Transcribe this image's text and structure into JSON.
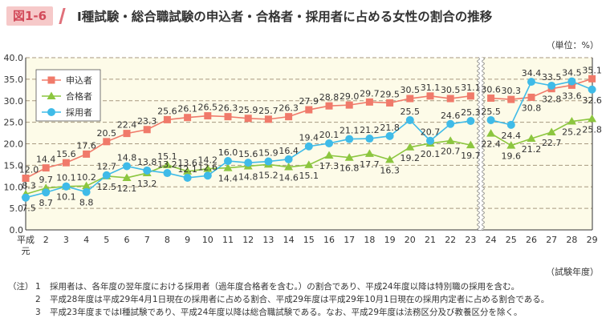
{
  "figure_label": "図1-6",
  "unit": "（単位：%）",
  "chart_data": {
    "type": "line",
    "title": "Ⅰ種試験・総合職試験の申込者・合格者・採用者に占める女性の割合の推移",
    "xlabel": "（試験年度）",
    "categories": [
      "平成元",
      "2",
      "3",
      "4",
      "5",
      "6",
      "7",
      "8",
      "9",
      "10",
      "11",
      "12",
      "13",
      "14",
      "15",
      "16",
      "17",
      "18",
      "19",
      "20",
      "21",
      "22",
      "23",
      "24",
      "25",
      "26",
      "27",
      "28",
      "29"
    ],
    "axis_break_between": [
      "23",
      "24"
    ],
    "ylim": [
      0,
      40
    ],
    "yticks": [
      "0.0",
      "5.0",
      "10.0",
      "15.0",
      "20.0",
      "25.0",
      "30.0",
      "35.0",
      "40.0"
    ],
    "grid": "horizontal dashed",
    "legend": "top-left",
    "series": [
      {
        "name": "申込者",
        "color": "#f07a6a",
        "marker": "square",
        "values": [
          12.0,
          14.4,
          15.6,
          17.6,
          20.5,
          22.4,
          23.3,
          25.6,
          26.1,
          26.5,
          26.3,
          25.9,
          25.7,
          26.3,
          27.9,
          28.8,
          29.0,
          29.7,
          29.5,
          30.5,
          31.1,
          30.5,
          31.1,
          30.6,
          30.3,
          30.8,
          32.8,
          33.6,
          35.1
        ]
      },
      {
        "name": "合格者",
        "color": "#8cc63f",
        "marker": "triangle",
        "values": [
          8.3,
          9.7,
          10.1,
          10.2,
          12.5,
          12.1,
          13.2,
          15.1,
          13.6,
          14.2,
          14.4,
          14.8,
          15.2,
          14.6,
          15.1,
          17.3,
          16.8,
          17.7,
          16.3,
          19.2,
          20.1,
          20.7,
          19.7,
          22.4,
          19.6,
          21.2,
          22.7,
          25.2,
          25.8
        ]
      },
      {
        "name": "採用者",
        "color": "#3fbbe8",
        "marker": "circle",
        "values": [
          7.5,
          8.7,
          10.1,
          8.8,
          12.7,
          14.8,
          13.8,
          13.2,
          12.1,
          12.6,
          16.0,
          15.6,
          15.9,
          16.4,
          19.4,
          20.1,
          21.1,
          21.2,
          21.8,
          25.5,
          20.7,
          24.6,
          25.3,
          25.5,
          24.4,
          34.4,
          33.5,
          34.5,
          32.6
        ]
      }
    ]
  },
  "notes": {
    "prefix": "（注）",
    "items": [
      {
        "num": "1",
        "text": "採用者は、各年度の翌年度における採用者（過年度合格者を含む。）の割合であり、平成24年度以降は特別職の採用を含む。"
      },
      {
        "num": "2",
        "text": "平成28年度は平成29年4月1日現在の採用者に占める割合、平成29年度は平成29年10月1日現在の採用内定者に占める割合である。"
      },
      {
        "num": "3",
        "text": "平成23年度まではⅠ種試験であり、平成24年度以降は総合職試験である。なお、平成29年度は法務区分及び教養区分を除く。"
      }
    ]
  }
}
